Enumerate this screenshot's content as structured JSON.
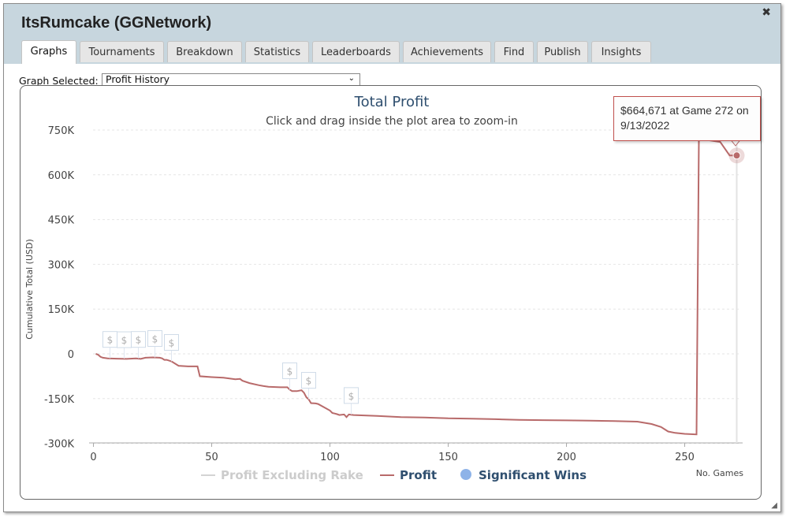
{
  "window": {
    "title": "ItsRumcake (GGNetwork)",
    "close_glyph": "✖"
  },
  "tabs": [
    {
      "label": "Graphs",
      "active": true
    },
    {
      "label": "Tournaments"
    },
    {
      "label": "Breakdown"
    },
    {
      "label": "Statistics"
    },
    {
      "label": "Leaderboards"
    },
    {
      "label": "Achievements"
    },
    {
      "label": "Find"
    },
    {
      "label": "Publish"
    },
    {
      "label": "Insights"
    }
  ],
  "graph_select": {
    "label": "Graph Selected:",
    "value": "Profit History"
  },
  "tooltip": {
    "line1": "$664,671 at Game 272 on",
    "line2": "9/13/2022"
  },
  "menu_icon": "hamburger-menu-icon",
  "marker_glyph": "$",
  "colors": {
    "profit": "#b86a6a",
    "rake": "#d3d3d3",
    "significant": "#8eb3e8",
    "title": "#2f4f6f",
    "tab_bar": "#c7d6de"
  },
  "chart_data": {
    "type": "line",
    "title": "Total Profit",
    "subtitle": "Click and drag inside the plot area to zoom-in",
    "xlabel": "No. Games",
    "ylabel": "Cumulative Total (USD)",
    "xlim": [
      0,
      275
    ],
    "ylim": [
      -300000,
      750000
    ],
    "xticks": [
      0,
      50,
      100,
      150,
      200,
      250
    ],
    "yticks": [
      -300000,
      -150000,
      0,
      150000,
      300000,
      450000,
      600000,
      750000
    ],
    "ytick_labels": [
      "-300K",
      "-150K",
      "0",
      "150K",
      "300K",
      "450K",
      "600K",
      "750K"
    ],
    "grid": "horizontal-dashed",
    "legend": {
      "placement": "bottom",
      "items": [
        "Profit Excluding Rake",
        "Profit",
        "Significant Wins"
      ]
    },
    "series": [
      {
        "name": "Profit",
        "x": [
          1,
          2,
          3,
          4,
          6,
          10,
          14,
          18,
          20,
          22,
          25,
          28,
          29,
          30,
          31,
          33,
          36,
          40,
          44,
          45,
          50,
          55,
          60,
          62,
          63,
          66,
          70,
          72,
          74,
          79,
          80,
          82,
          83,
          84,
          86,
          88,
          89,
          90,
          91,
          92,
          94,
          95,
          100,
          101,
          102,
          103,
          104,
          106,
          107,
          108,
          110,
          120,
          130,
          140,
          150,
          160,
          170,
          180,
          190,
          200,
          210,
          220,
          230,
          236,
          240,
          243,
          246,
          250,
          255,
          256,
          257,
          265,
          269,
          272
        ],
        "y": [
          0,
          -3000,
          -10000,
          -13000,
          -15000,
          -16000,
          -17000,
          -15000,
          -17000,
          -13000,
          -12000,
          -13000,
          -15000,
          -20000,
          -20000,
          -25000,
          -40000,
          -42000,
          -42000,
          -75000,
          -78000,
          -80000,
          -85000,
          -84000,
          -90000,
          -98000,
          -105000,
          -108000,
          -110000,
          -112000,
          -112000,
          -112000,
          -120000,
          -125000,
          -125000,
          -122000,
          -130000,
          -145000,
          -152000,
          -165000,
          -166000,
          -168000,
          -190000,
          -198000,
          -200000,
          -202000,
          -205000,
          -203000,
          -212000,
          -203000,
          -205000,
          -208000,
          -212000,
          -213000,
          -216000,
          -217000,
          -219000,
          -221000,
          -222000,
          -223000,
          -224000,
          -225000,
          -227000,
          -235000,
          -245000,
          -260000,
          -265000,
          -268000,
          -270000,
          720000,
          720000,
          710000,
          665000,
          664671
        ]
      }
    ],
    "significant_wins_x": [
      7,
      13,
      19,
      26,
      33,
      83,
      91,
      109
    ],
    "tooltip_point": {
      "x": 272,
      "y": 664671
    }
  }
}
